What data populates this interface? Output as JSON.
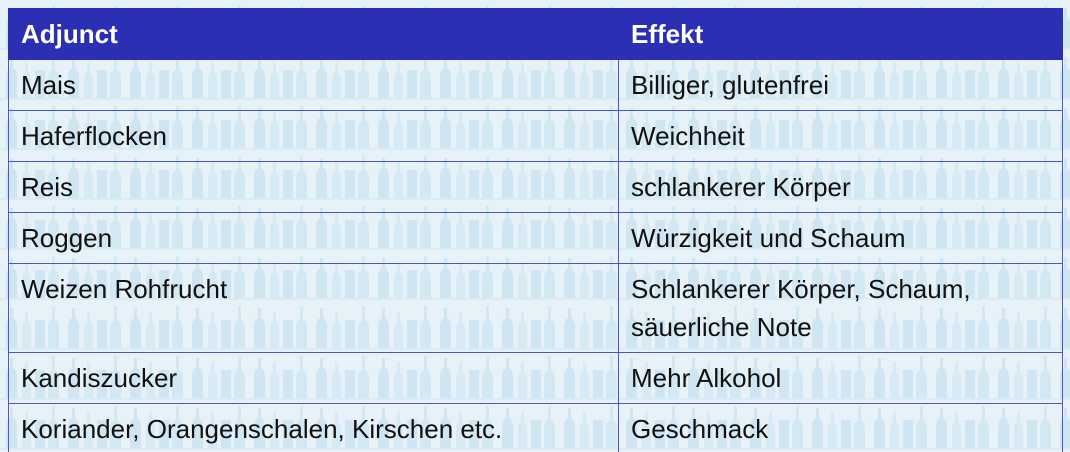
{
  "table": {
    "headers": [
      "Adjunct",
      "Effekt"
    ],
    "rows": [
      [
        "Mais",
        "Billiger, glutenfrei"
      ],
      [
        "Haferflocken",
        "Weichheit"
      ],
      [
        "Reis",
        "schlankerer Körper"
      ],
      [
        "Roggen",
        "Würzigkeit und Schaum"
      ],
      [
        "Weizen Rohfrucht",
        "Schlankerer Körper, Schaum, säuerliche Note"
      ],
      [
        "Kandiszucker",
        "Mehr Alkohol"
      ],
      [
        "Koriander, Orangenschalen, Kirschen etc.",
        "Geschmack"
      ]
    ]
  },
  "colors": {
    "header_bg": "#2a2fb4",
    "header_text": "#ffffff",
    "grid_line": "#4a55c8",
    "background_pattern": "#cfe6f2"
  },
  "background_icon": "bottle-pattern"
}
